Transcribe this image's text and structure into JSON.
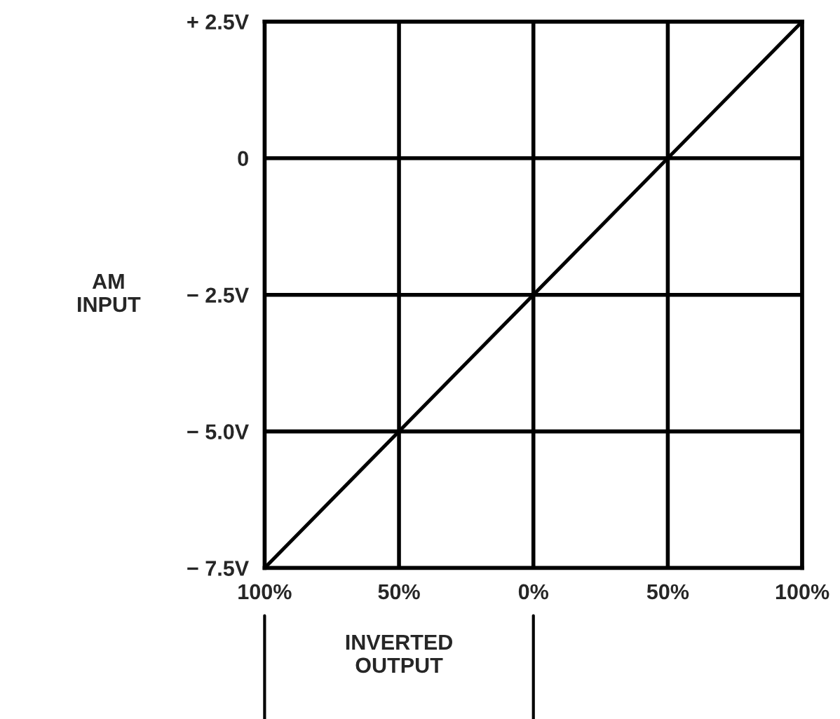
{
  "chart_data": {
    "type": "line",
    "ylabel": "AM\nINPUT",
    "series": [
      {
        "color": "#000000",
        "x": [
          -100,
          100
        ],
        "values": [
          -7.5,
          2.5
        ]
      }
    ],
    "xlim": [
      -100,
      100
    ],
    "xticks": [
      {
        "value": -100,
        "label": "100%"
      },
      {
        "value": -50,
        "label": "50%"
      },
      {
        "value": 0,
        "label": "0%"
      },
      {
        "value": 50,
        "label": "50%"
      },
      {
        "value": 100,
        "label": "100%"
      }
    ],
    "ylim": [
      -7.5,
      2.5
    ],
    "yticks": [
      {
        "value": 2.5,
        "label": "+ 2.5V"
      },
      {
        "value": 0,
        "label": "0"
      },
      {
        "value": -2.5,
        "label": "− 2.5V"
      },
      {
        "value": -5,
        "label": "− 5.0V"
      },
      {
        "value": -7.5,
        "label": "− 7.5V"
      }
    ],
    "grid": true,
    "marker": "none",
    "line_style": "solid",
    "annotations": [
      "INVERTED\nOUTPUT"
    ]
  }
}
